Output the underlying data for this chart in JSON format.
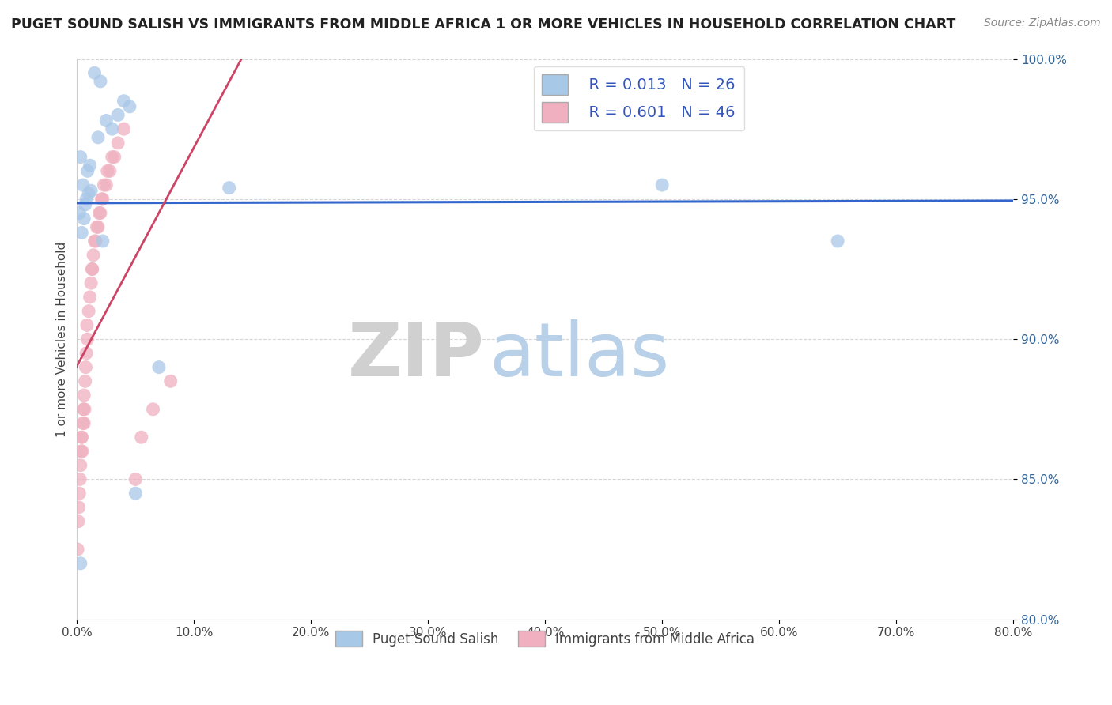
{
  "title": "PUGET SOUND SALISH VS IMMIGRANTS FROM MIDDLE AFRICA 1 OR MORE VEHICLES IN HOUSEHOLD CORRELATION CHART",
  "source": "Source: ZipAtlas.com",
  "xlabel": "",
  "ylabel": "1 or more Vehicles in Household",
  "xlim": [
    0.0,
    80.0
  ],
  "ylim": [
    80.0,
    100.0
  ],
  "x_ticks": [
    0.0,
    10.0,
    20.0,
    30.0,
    40.0,
    50.0,
    60.0,
    70.0,
    80.0
  ],
  "y_ticks": [
    80.0,
    85.0,
    90.0,
    95.0,
    100.0
  ],
  "blue_label": "Puget Sound Salish",
  "pink_label": "Immigrants from Middle Africa",
  "blue_R": "R = 0.013",
  "blue_N": "N = 26",
  "pink_R": "R = 0.601",
  "pink_N": "N = 46",
  "blue_color": "#a8c8e8",
  "pink_color": "#f0b0c0",
  "blue_line_color": "#3366cc",
  "pink_line_color": "#cc4466",
  "legend_text_color": "#3355bb",
  "watermark_zip": "ZIP",
  "watermark_atlas": "atlas",
  "watermark_zip_color": "#d0d0d0",
  "watermark_atlas_color": "#b8d0e8",
  "blue_x": [
    0.3,
    1.5,
    2.0,
    0.5,
    1.0,
    2.5,
    3.0,
    0.8,
    1.2,
    0.2,
    0.6,
    3.5,
    1.8,
    50.0,
    65.0,
    0.4,
    2.2,
    7.0,
    0.9,
    1.1,
    0.7,
    4.0,
    4.5,
    0.3,
    13.0,
    5.0
  ],
  "blue_y": [
    82.0,
    99.5,
    99.2,
    95.5,
    95.2,
    97.8,
    97.5,
    95.0,
    95.3,
    94.5,
    94.3,
    98.0,
    97.2,
    95.5,
    93.5,
    93.8,
    93.5,
    89.0,
    96.0,
    96.2,
    94.8,
    98.5,
    98.3,
    96.5,
    95.4,
    84.5
  ],
  "pink_x": [
    0.05,
    0.1,
    0.15,
    0.2,
    0.25,
    0.3,
    0.35,
    0.4,
    0.45,
    0.5,
    0.55,
    0.6,
    0.65,
    0.7,
    0.75,
    0.8,
    0.9,
    1.0,
    1.1,
    1.2,
    1.3,
    1.5,
    1.7,
    2.0,
    2.2,
    2.5,
    2.8,
    3.0,
    3.5,
    4.0,
    1.4,
    1.6,
    0.85,
    1.8,
    2.3,
    2.6,
    1.9,
    3.2,
    2.1,
    1.3,
    0.4,
    0.6,
    5.0,
    5.5,
    6.5,
    8.0
  ],
  "pink_y": [
    82.5,
    83.5,
    84.0,
    84.5,
    85.0,
    85.5,
    86.0,
    86.5,
    86.0,
    87.0,
    87.5,
    88.0,
    87.5,
    88.5,
    89.0,
    89.5,
    90.0,
    91.0,
    91.5,
    92.0,
    92.5,
    93.5,
    94.0,
    94.5,
    95.0,
    95.5,
    96.0,
    96.5,
    97.0,
    97.5,
    93.0,
    93.5,
    90.5,
    94.0,
    95.5,
    96.0,
    94.5,
    96.5,
    95.0,
    92.5,
    86.5,
    87.0,
    85.0,
    86.5,
    87.5,
    88.5
  ],
  "background_color": "#ffffff",
  "grid_color": "#cccccc"
}
